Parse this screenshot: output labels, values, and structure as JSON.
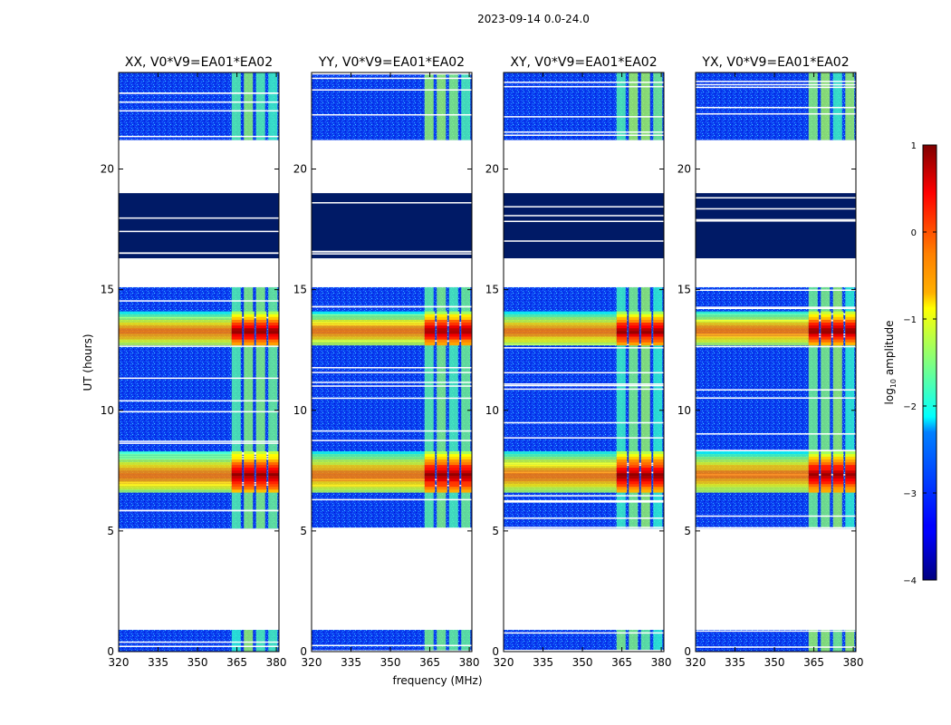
{
  "chart_data": {
    "type": "heatmap",
    "title": "2023-09-14 0.0-24.0",
    "xlabel": "frequency (MHz)",
    "ylabel": "UT (hours)",
    "xlim": [
      320,
      381
    ],
    "ylim": [
      0,
      24
    ],
    "xticks": [
      320,
      335,
      350,
      365,
      380
    ],
    "yticks": [
      0,
      5,
      10,
      15,
      20
    ],
    "colorbar": {
      "label_base": "log",
      "label_sub": "10",
      "label_rest": " amplitude",
      "range": [
        -4,
        1
      ],
      "ticks": [
        "−4",
        "−3",
        "−2",
        "−1",
        "0",
        "1"
      ]
    },
    "panels": [
      {
        "title": "XX, V0*V9=EA01*EA02"
      },
      {
        "title": "YY, V0*V9=EA01*EA02"
      },
      {
        "title": "XY, V0*V9=EA01*EA02"
      },
      {
        "title": "YX, V0*V9=EA01*EA02"
      }
    ],
    "data_coverage_hours": [
      [
        0.0,
        0.9
      ],
      [
        5.1,
        15.1
      ],
      [
        16.3,
        19.0
      ],
      [
        21.2,
        24.0
      ]
    ],
    "rfi_band_mhz": [
      363,
      380
    ],
    "intense_periods_hours": [
      [
        6.6,
        8.3
      ],
      [
        12.7,
        14.1
      ]
    ]
  }
}
